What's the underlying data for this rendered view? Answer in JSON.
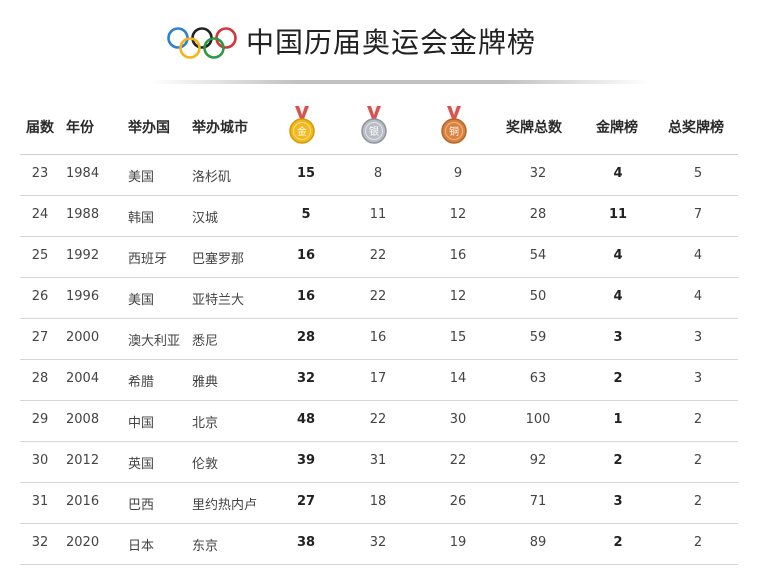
{
  "title": "中国历届奥运会金牌榜",
  "headers": {
    "session": "届数",
    "year": "年份",
    "country": "举办国",
    "city": "举办城市",
    "gold_medal_glyph": "金",
    "silver_medal_glyph": "银",
    "bronze_medal_glyph": "铜",
    "total": "奖牌总数",
    "gold_rank": "金牌榜",
    "total_rank": "总奖牌榜"
  },
  "colors": {
    "gold": "#f2b81c",
    "silver": "#b9bcc4",
    "bronze": "#d9823f",
    "ribbon_red": "#d9534f"
  },
  "rows": [
    {
      "session": "23",
      "year": "1984",
      "country": "美国",
      "city": "洛杉矶",
      "gold": "15",
      "silver": "8",
      "bronze": "9",
      "total": "32",
      "gold_rank": "4",
      "total_rank": "5"
    },
    {
      "session": "24",
      "year": "1988",
      "country": "韩国",
      "city": "汉城",
      "gold": "5",
      "silver": "11",
      "bronze": "12",
      "total": "28",
      "gold_rank": "11",
      "total_rank": "7"
    },
    {
      "session": "25",
      "year": "1992",
      "country": "西班牙",
      "city": "巴塞罗那",
      "gold": "16",
      "silver": "22",
      "bronze": "16",
      "total": "54",
      "gold_rank": "4",
      "total_rank": "4"
    },
    {
      "session": "26",
      "year": "1996",
      "country": "美国",
      "city": "亚特兰大",
      "gold": "16",
      "silver": "22",
      "bronze": "12",
      "total": "50",
      "gold_rank": "4",
      "total_rank": "4"
    },
    {
      "session": "27",
      "year": "2000",
      "country": "澳大利亚",
      "city": "悉尼",
      "gold": "28",
      "silver": "16",
      "bronze": "15",
      "total": "59",
      "gold_rank": "3",
      "total_rank": "3"
    },
    {
      "session": "28",
      "year": "2004",
      "country": "希腊",
      "city": "雅典",
      "gold": "32",
      "silver": "17",
      "bronze": "14",
      "total": "63",
      "gold_rank": "2",
      "total_rank": "3"
    },
    {
      "session": "29",
      "year": "2008",
      "country": "中国",
      "city": "北京",
      "gold": "48",
      "silver": "22",
      "bronze": "30",
      "total": "100",
      "gold_rank": "1",
      "total_rank": "2"
    },
    {
      "session": "30",
      "year": "2012",
      "country": "英国",
      "city": "伦敦",
      "gold": "39",
      "silver": "31",
      "bronze": "22",
      "total": "92",
      "gold_rank": "2",
      "total_rank": "2"
    },
    {
      "session": "31",
      "year": "2016",
      "country": "巴西",
      "city": "里约热内卢",
      "gold": "27",
      "silver": "18",
      "bronze": "26",
      "total": "71",
      "gold_rank": "3",
      "total_rank": "2"
    },
    {
      "session": "32",
      "year": "2020",
      "country": "日本",
      "city": "东京",
      "gold": "38",
      "silver": "32",
      "bronze": "19",
      "total": "89",
      "gold_rank": "2",
      "total_rank": "2"
    }
  ]
}
